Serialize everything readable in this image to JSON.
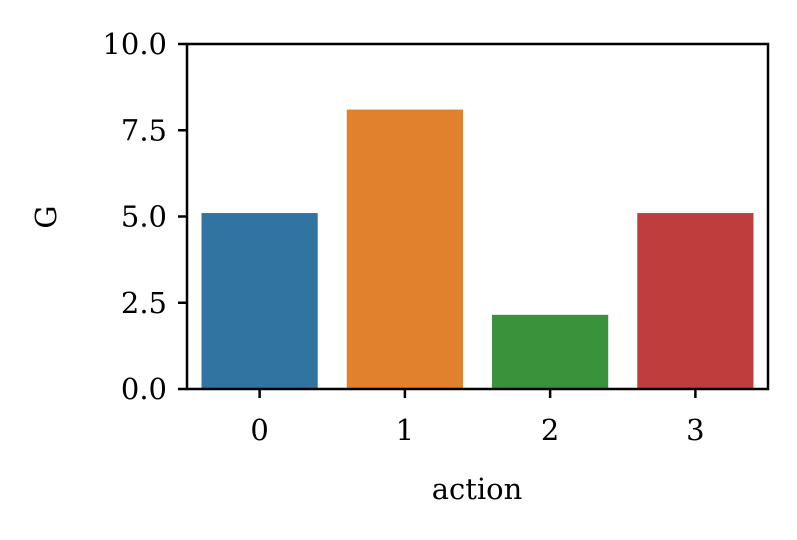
{
  "chart_data": {
    "type": "bar",
    "categories": [
      "0",
      "1",
      "2",
      "3"
    ],
    "values": [
      5.1,
      8.1,
      2.15,
      5.1
    ],
    "colors": [
      "#3274a1",
      "#e1812c",
      "#3a923a",
      "#c03d3e"
    ],
    "xlabel": "action",
    "ylabel": "G",
    "ylim": [
      0,
      10
    ],
    "yticks": [
      "0.0",
      "2.5",
      "5.0",
      "7.5",
      "10.0"
    ],
    "grid": false,
    "legend": "none"
  }
}
